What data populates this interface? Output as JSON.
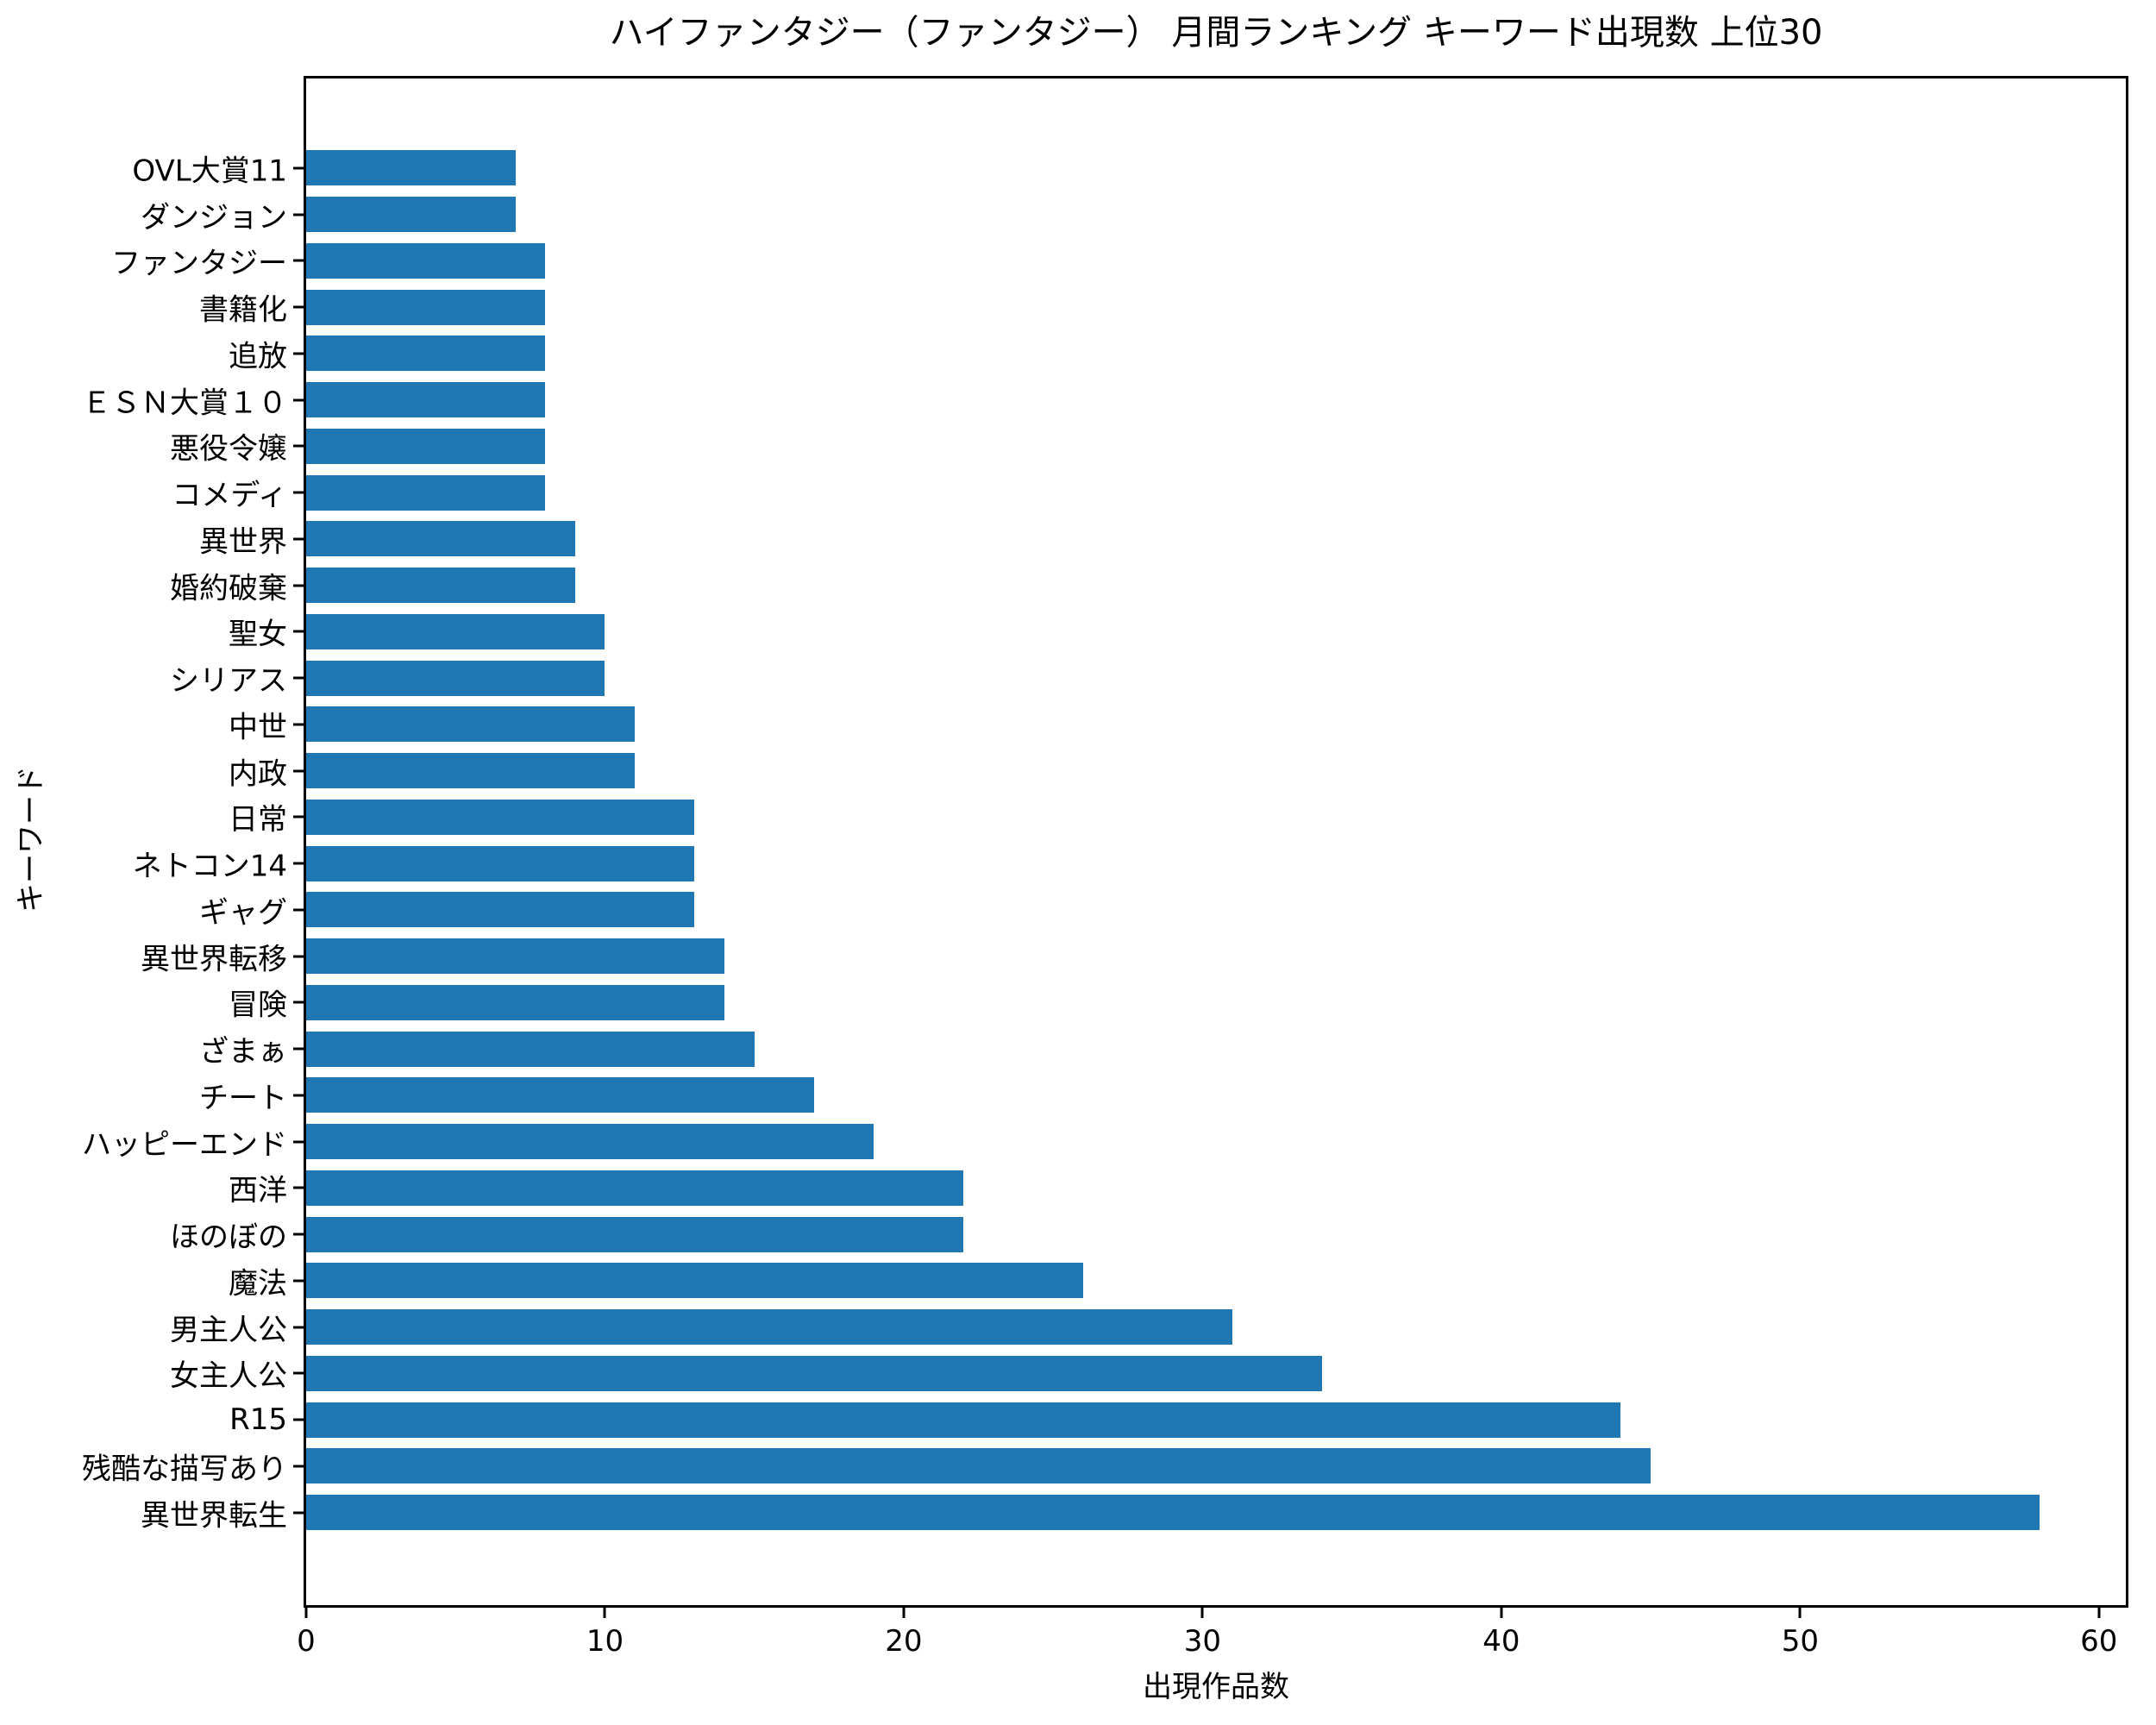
{
  "chart_data": {
    "type": "bar",
    "orientation": "horizontal",
    "title": "ハイファンタジー（ファンタジー） 月間ランキング キーワード出現数 上位30",
    "xlabel": "出現作品数",
    "ylabel": "キーワード",
    "categories": [
      "OVL大賞11",
      "ダンジョン",
      "ファンタジー",
      "書籍化",
      "追放",
      "ＥＳＮ大賞１０",
      "悪役令嬢",
      "コメディ",
      "異世界",
      "婚約破棄",
      "聖女",
      "シリアス",
      "中世",
      "内政",
      "日常",
      "ネトコン14",
      "ギャグ",
      "異世界転移",
      "冒険",
      "ざまぁ",
      "チート",
      "ハッピーエンド",
      "西洋",
      "ほのぼの",
      "魔法",
      "男主人公",
      "女主人公",
      "R15",
      "残酷な描写あり",
      "異世界転生"
    ],
    "values": [
      7,
      7,
      8,
      8,
      8,
      8,
      8,
      8,
      9,
      9,
      10,
      10,
      11,
      11,
      13,
      13,
      13,
      14,
      14,
      15,
      17,
      19,
      22,
      22,
      26,
      31,
      34,
      44,
      45,
      58
    ],
    "xlim": [
      0,
      60.9
    ],
    "xticks": [
      0,
      10,
      20,
      30,
      40,
      50,
      60
    ],
    "bar_color": "#1f77b4",
    "axis_color": "#000000",
    "background_color": "#ffffff",
    "grid": false,
    "legend": null
  }
}
